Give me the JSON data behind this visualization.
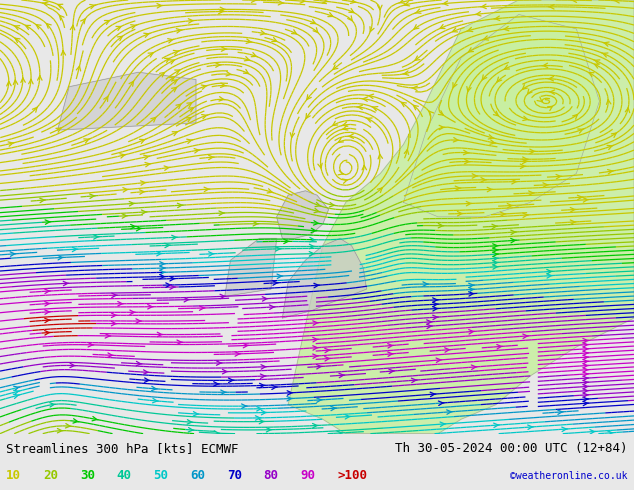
{
  "title_left": "Streamlines 300 hPa [kts] ECMWF",
  "title_right": "Th 30-05-2024 00:00 UTC (12+84)",
  "credit": "©weatheronline.co.uk",
  "legend_values": [
    "10",
    "20",
    "30",
    "40",
    "50",
    "60",
    "70",
    "80",
    "90",
    ">100"
  ],
  "legend_colors": [
    "#c8c800",
    "#96c800",
    "#00c800",
    "#00c896",
    "#00c8c8",
    "#0096c8",
    "#0000c8",
    "#9600c8",
    "#c800c8",
    "#c80000"
  ],
  "background_color": "#e8e8e8",
  "land_color": "#c8f0a0",
  "fig_width": 6.34,
  "fig_height": 4.9,
  "dpi": 100,
  "bottom_bar_color": "#ffffff",
  "title_fontsize": 9,
  "legend_fontsize": 9,
  "xlim": [
    -30,
    25
  ],
  "ylim": [
    42,
    72
  ]
}
